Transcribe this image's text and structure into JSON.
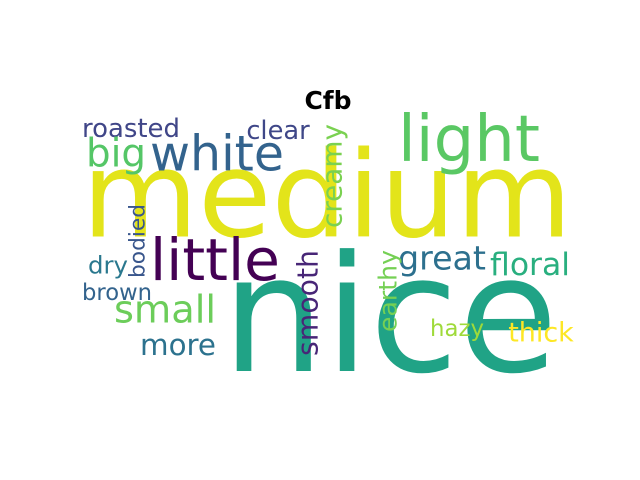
{
  "figure": {
    "title": "Cfb",
    "background": "#ffffff",
    "colormap": "viridis"
  },
  "words": [
    {
      "text": "medium",
      "color": "#e3e41a"
    },
    {
      "text": "nice",
      "color": "#20a386"
    },
    {
      "text": "light",
      "color": "#5ac864"
    },
    {
      "text": "white",
      "color": "#33638d"
    },
    {
      "text": "little",
      "color": "#440154"
    },
    {
      "text": "great",
      "color": "#2d708e"
    },
    {
      "text": "small",
      "color": "#6ccd5a"
    },
    {
      "text": "more",
      "color": "#2c728e"
    },
    {
      "text": "brown",
      "color": "#33638d"
    },
    {
      "text": "smooth",
      "color": "#482677"
    },
    {
      "text": "creamy",
      "color": "#7ad151"
    },
    {
      "text": "roasted",
      "color": "#404688"
    },
    {
      "text": "big",
      "color": "#55c667"
    },
    {
      "text": "clear",
      "color": "#3f4788"
    },
    {
      "text": "bodied",
      "color": "#39568c"
    },
    {
      "text": "dry",
      "color": "#2a788e"
    },
    {
      "text": "floral",
      "color": "#29af7f"
    },
    {
      "text": "earthy",
      "color": "#75d054"
    },
    {
      "text": "hazy",
      "color": "#9fda3a"
    },
    {
      "text": "thick",
      "color": "#fde725"
    }
  ]
}
